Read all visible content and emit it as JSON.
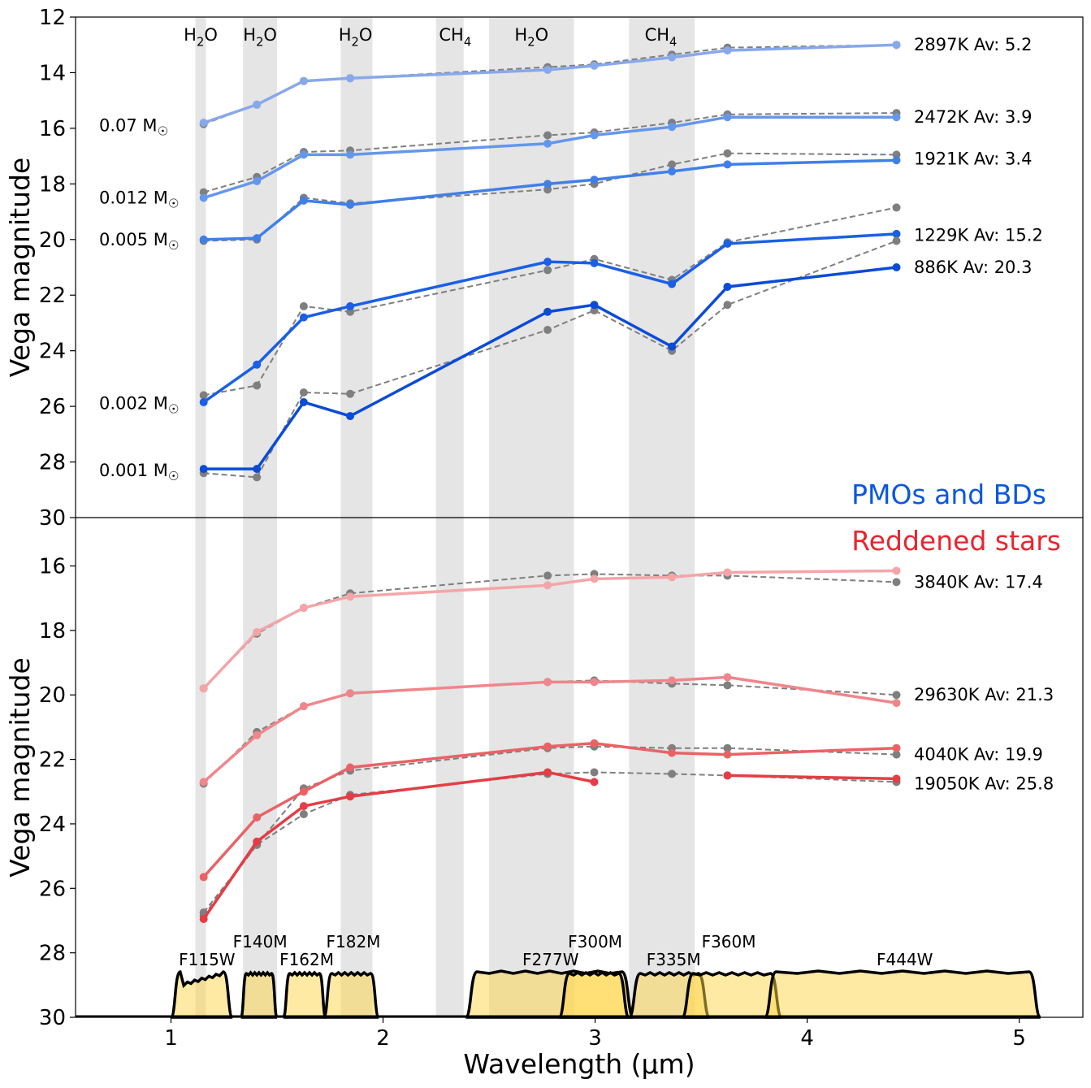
{
  "chart_data": {
    "type": "line",
    "xlabel": "Wavelength (µm)",
    "x_ticks": [
      "1",
      "2",
      "3",
      "4",
      "5"
    ],
    "x_tick_values": [
      1,
      2,
      3,
      4,
      5
    ],
    "xlim": [
      0.55,
      5.3
    ],
    "filter_wavelengths": [
      1.154,
      1.405,
      1.626,
      1.845,
      2.776,
      2.996,
      3.362,
      3.624,
      4.421
    ],
    "absorption_bands": [
      {
        "label": "H₂O",
        "range": [
          1.115,
          1.165
        ]
      },
      {
        "label": "H₂O",
        "range": [
          1.34,
          1.5
        ]
      },
      {
        "label": "H₂O",
        "range": [
          1.8,
          1.95
        ]
      },
      {
        "label": "CH₄",
        "range": [
          2.25,
          2.38
        ]
      },
      {
        "label": "H₂O",
        "range": [
          2.5,
          2.9
        ]
      },
      {
        "label": "CH₄",
        "range": [
          3.16,
          3.47
        ]
      }
    ],
    "band_labels": [
      {
        "text": "H₂O",
        "x": 1.14
      },
      {
        "text": "H₂O",
        "x": 1.42
      },
      {
        "text": "H₂O",
        "x": 1.87
      },
      {
        "text": "CH₄",
        "x": 2.34
      },
      {
        "text": "H₂O",
        "x": 2.7
      },
      {
        "text": "CH₄",
        "x": 3.31
      }
    ],
    "panels": [
      {
        "title": "PMOs and BDs",
        "title_color": "#0a57e0",
        "ylabel": "Vega magnitude",
        "ylim": [
          30,
          12
        ],
        "y_ticks": [
          12,
          14,
          16,
          18,
          20,
          22,
          24,
          26,
          28,
          30
        ],
        "mass_labels": [
          {
            "text": "0.07 M☉",
            "y": 15.9
          },
          {
            "text": "0.012 M☉",
            "y": 18.5
          },
          {
            "text": "0.005 M☉",
            "y": 20.0
          },
          {
            "text": "0.002 M☉",
            "y": 25.9
          },
          {
            "text": "0.001 M☉",
            "y": 28.3
          }
        ],
        "series": [
          {
            "name": "2897K  Av: 5.2",
            "label_y": 13.0,
            "color": "#88a8ec",
            "values": [
              15.8,
              15.15,
              14.3,
              14.2,
              13.9,
              13.75,
              13.45,
              13.2,
              13.0
            ],
            "model": [
              15.85,
              15.15,
              14.3,
              14.2,
              13.8,
              13.7,
              13.35,
              13.1,
              13.0
            ]
          },
          {
            "name": "2472K  Av: 3.9",
            "label_y": 15.6,
            "color": "#6497ec",
            "values": [
              18.5,
              17.9,
              16.95,
              16.95,
              16.55,
              16.25,
              15.95,
              15.6,
              15.6
            ],
            "model": [
              18.3,
              17.75,
              16.85,
              16.8,
              16.25,
              16.15,
              15.8,
              15.5,
              15.45
            ]
          },
          {
            "name": "1921K  Av: 3.4",
            "label_y": 17.1,
            "color": "#407fe8",
            "values": [
              20.0,
              19.95,
              18.6,
              18.75,
              18.0,
              17.85,
              17.55,
              17.3,
              17.15
            ],
            "model": [
              20.05,
              20.0,
              18.5,
              18.7,
              18.2,
              18.0,
              17.3,
              16.9,
              16.95
            ]
          },
          {
            "name": "1229K  Av: 15.2",
            "label_y": 19.85,
            "color": "#1a5fe6",
            "values": [
              25.85,
              24.5,
              22.8,
              22.4,
              20.8,
              20.85,
              21.6,
              20.15,
              19.8
            ],
            "model": [
              25.6,
              25.25,
              22.4,
              22.6,
              21.1,
              20.7,
              21.45,
              20.1,
              18.85
            ]
          },
          {
            "name": "886K  Av: 20.3",
            "label_y": 21.0,
            "color": "#0b4bd6",
            "values": [
              28.25,
              28.25,
              25.85,
              26.35,
              22.6,
              22.35,
              23.85,
              21.7,
              21.0
            ],
            "model": [
              28.4,
              28.55,
              25.5,
              25.55,
              23.25,
              22.55,
              24.0,
              22.35,
              20.05
            ]
          }
        ]
      },
      {
        "title": "Reddened stars",
        "title_color": "#e8252f",
        "ylabel": "Vega magnitude",
        "ylim": [
          30,
          14.5
        ],
        "y_ticks": [
          16,
          18,
          20,
          22,
          24,
          26,
          28,
          30
        ],
        "series": [
          {
            "name": "3840K  Av: 17.4",
            "label_y": 16.5,
            "color": "#f4a5a8",
            "values": [
              19.8,
              18.05,
              17.3,
              16.95,
              16.6,
              16.4,
              16.35,
              16.2,
              16.15
            ],
            "model": [
              19.8,
              18.1,
              17.3,
              16.85,
              16.3,
              16.25,
              16.3,
              16.3,
              16.5
            ]
          },
          {
            "name": "29630K  Av: 21.3",
            "label_y": 20.0,
            "color": "#ef868b",
            "values": [
              22.7,
              21.25,
              20.35,
              19.95,
              19.6,
              19.6,
              19.55,
              19.45,
              20.25
            ],
            "model": [
              22.75,
              21.15,
              20.35,
              19.95,
              19.6,
              19.55,
              19.65,
              19.7,
              20.0
            ]
          },
          {
            "name": "4040K  Av: 19.9",
            "label_y": 21.85,
            "color": "#ea6266",
            "values": [
              25.65,
              23.8,
              23.0,
              22.25,
              21.6,
              21.5,
              21.8,
              21.85,
              21.65
            ],
            "model": [
              26.75,
              24.65,
              22.9,
              22.35,
              21.65,
              21.6,
              21.65,
              21.65,
              21.85
            ]
          },
          {
            "name": "19050K  Av: 25.8",
            "label_y": 22.75,
            "color": "#e53d45",
            "values": [
              26.95,
              24.55,
              23.45,
              23.15,
              22.4,
              22.7,
              null,
              22.5,
              22.6
            ],
            "model": [
              26.85,
              24.65,
              23.7,
              23.1,
              22.45,
              22.4,
              22.45,
              22.5,
              22.7
            ]
          }
        ],
        "filters": [
          {
            "name": "F115W",
            "range": [
              1.0,
              1.29
            ],
            "label_x": 1.17,
            "row": 2
          },
          {
            "name": "F140M",
            "range": [
              1.33,
              1.5
            ],
            "label_x": 1.42,
            "row": 1
          },
          {
            "name": "F162M",
            "range": [
              1.53,
              1.73
            ],
            "label_x": 1.64,
            "row": 2
          },
          {
            "name": "F182M",
            "range": [
              1.72,
              1.98
            ],
            "label_x": 1.86,
            "row": 1
          },
          {
            "name": "F277W",
            "range": [
              2.39,
              3.18
            ],
            "label_x": 2.79,
            "row": 2
          },
          {
            "name": "F300M",
            "range": [
              2.83,
              3.16
            ],
            "label_x": 3.0,
            "row": 1
          },
          {
            "name": "F335M",
            "range": [
              3.16,
              3.54
            ],
            "label_x": 3.37,
            "row": 2
          },
          {
            "name": "F360M",
            "range": [
              3.41,
              3.88
            ],
            "label_x": 3.63,
            "row": 1
          },
          {
            "name": "F444W",
            "range": [
              3.8,
              5.1
            ],
            "label_x": 4.46,
            "row": 2
          }
        ]
      }
    ]
  }
}
